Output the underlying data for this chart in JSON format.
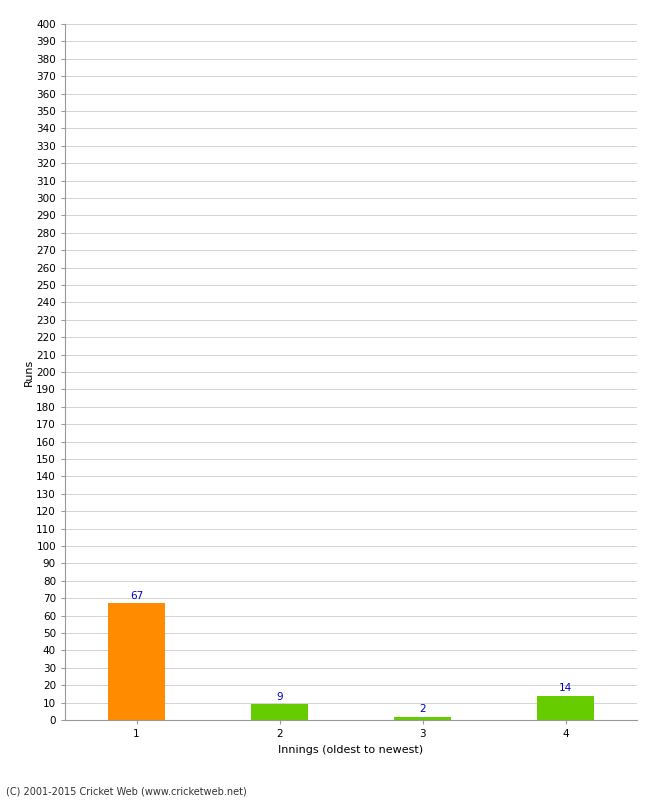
{
  "categories": [
    "1",
    "2",
    "3",
    "4"
  ],
  "values": [
    67,
    9,
    2,
    14
  ],
  "bar_colors": [
    "#ff8c00",
    "#66cc00",
    "#66cc00",
    "#66cc00"
  ],
  "ylabel": "Runs",
  "xlabel": "Innings (oldest to newest)",
  "ylim": [
    0,
    400
  ],
  "value_label_color": "#0000cc",
  "value_label_fontsize": 7.5,
  "axis_label_fontsize": 8,
  "tick_fontsize": 7.5,
  "footer": "(C) 2001-2015 Cricket Web (www.cricketweb.net)",
  "background_color": "#ffffff",
  "grid_color": "#cccccc",
  "bar_width": 0.4
}
